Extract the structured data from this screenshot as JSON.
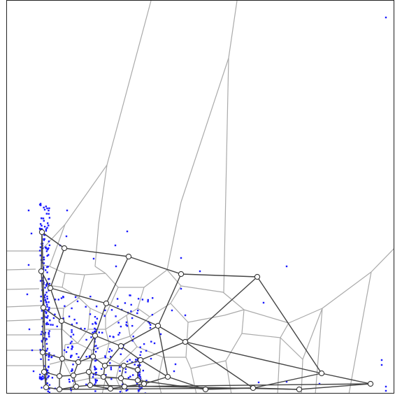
{
  "colors": {
    "voronoi": "#aaaaaa",
    "graph_edge": "#444444",
    "node_fill": "#ffffff",
    "node_stroke": "#333333",
    "samples": "#1a1aff",
    "frame": "#222222"
  }
}
